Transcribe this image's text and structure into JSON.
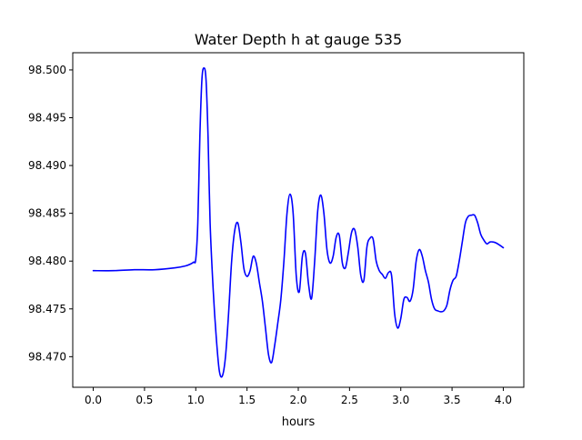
{
  "chart_data": {
    "type": "line",
    "title": "Water Depth h at gauge 535",
    "xlabel": "hours",
    "ylabel": "",
    "xlim": [
      -0.2,
      4.2
    ],
    "ylim": [
      98.4668,
      98.5018
    ],
    "xticks": [
      0.0,
      0.5,
      1.0,
      1.5,
      2.0,
      2.5,
      3.0,
      3.5,
      4.0
    ],
    "xtick_labels": [
      "0.0",
      "0.5",
      "1.0",
      "1.5",
      "2.0",
      "2.5",
      "3.0",
      "3.5",
      "4.0"
    ],
    "yticks": [
      98.47,
      98.475,
      98.48,
      98.485,
      98.49,
      98.495,
      98.5
    ],
    "ytick_labels": [
      "98.470",
      "98.475",
      "98.480",
      "98.485",
      "98.490",
      "98.495",
      "98.500"
    ],
    "grid": false,
    "series": [
      {
        "name": "",
        "color": "#0000ff",
        "x": [
          0.0,
          0.2,
          0.4,
          0.6,
          0.8,
          0.9,
          0.95,
          0.98,
          1.0,
          1.02,
          1.04,
          1.06,
          1.08,
          1.1,
          1.12,
          1.14,
          1.17,
          1.2,
          1.23,
          1.26,
          1.29,
          1.32,
          1.35,
          1.38,
          1.41,
          1.44,
          1.47,
          1.5,
          1.53,
          1.56,
          1.59,
          1.62,
          1.65,
          1.68,
          1.71,
          1.74,
          1.77,
          1.8,
          1.83,
          1.86,
          1.89,
          1.92,
          1.95,
          1.98,
          2.01,
          2.04,
          2.07,
          2.1,
          2.13,
          2.16,
          2.19,
          2.22,
          2.25,
          2.28,
          2.31,
          2.34,
          2.37,
          2.4,
          2.43,
          2.46,
          2.49,
          2.52,
          2.55,
          2.58,
          2.61,
          2.64,
          2.67,
          2.7,
          2.73,
          2.76,
          2.79,
          2.82,
          2.85,
          2.88,
          2.91,
          2.94,
          2.97,
          3.0,
          3.03,
          3.06,
          3.09,
          3.12,
          3.15,
          3.18,
          3.21,
          3.24,
          3.27,
          3.3,
          3.33,
          3.36,
          3.39,
          3.42,
          3.45,
          3.48,
          3.51,
          3.54,
          3.57,
          3.6,
          3.63,
          3.66,
          3.69,
          3.72,
          3.75,
          3.78,
          3.81,
          3.84,
          3.87,
          3.9,
          3.93,
          3.96,
          4.0
        ],
        "y": [
          98.479,
          98.479,
          98.4791,
          98.4791,
          98.4793,
          98.4795,
          98.4797,
          98.4799,
          98.4802,
          98.484,
          98.493,
          98.499,
          98.5002,
          98.499,
          98.493,
          98.484,
          98.477,
          98.472,
          98.4685,
          98.468,
          98.47,
          98.4745,
          98.48,
          98.4832,
          98.484,
          98.482,
          98.4792,
          98.4784,
          98.479,
          98.4805,
          98.4798,
          98.4778,
          98.4758,
          98.473,
          98.4702,
          98.4694,
          98.4712,
          98.4735,
          98.476,
          98.48,
          98.485,
          98.487,
          98.485,
          98.4785,
          98.4768,
          98.4805,
          98.4808,
          98.4776,
          98.4761,
          98.48,
          98.4853,
          98.4869,
          98.485,
          98.4812,
          98.4798,
          98.4805,
          98.4825,
          98.4827,
          98.4798,
          98.4793,
          98.481,
          98.483,
          98.4833,
          98.4815,
          98.4785,
          98.478,
          98.4815,
          98.4824,
          98.4823,
          98.48,
          98.479,
          98.4786,
          98.4782,
          98.4788,
          98.4785,
          98.4745,
          98.473,
          98.474,
          98.476,
          98.4762,
          98.4758,
          98.477,
          98.48,
          98.4812,
          98.4805,
          98.479,
          98.4778,
          98.476,
          98.475,
          98.4748,
          98.4747,
          98.4748,
          98.4754,
          98.477,
          98.478,
          98.4784,
          98.48,
          98.482,
          98.484,
          98.4847,
          98.4848,
          98.4848,
          98.484,
          98.4828,
          98.4822,
          98.4818,
          98.482,
          98.482,
          98.4819,
          98.4817,
          98.4814
        ]
      }
    ]
  }
}
